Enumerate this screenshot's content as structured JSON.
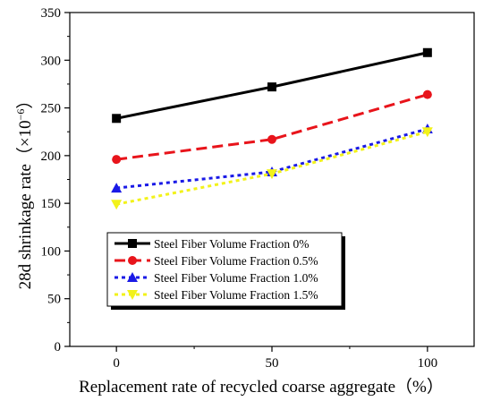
{
  "chart_data": {
    "type": "line",
    "xlabel": "Replacement rate of recycled coarse aggregate（%）",
    "ylabel_text": "28d shrinkage rate（×10",
    "ylabel_exponent": "−6",
    "ylabel_close": "）",
    "x": [
      0,
      50,
      100
    ],
    "x_ticks": [
      "0",
      "50",
      "100"
    ],
    "xlim": [
      -15,
      115
    ],
    "ylim": [
      0,
      350
    ],
    "y_ticks": [
      "0",
      "50",
      "100",
      "150",
      "200",
      "250",
      "300",
      "350"
    ],
    "grid": false,
    "legend_position": "lower-left",
    "series": [
      {
        "name": "Steel Fiber Volume Fraction 0%",
        "values": [
          239,
          272,
          308
        ],
        "color": "#000000",
        "marker": "square",
        "dash": "solid"
      },
      {
        "name": "Steel Fiber Volume Fraction 0.5%",
        "values": [
          196,
          217,
          264
        ],
        "color": "#e8141b",
        "marker": "circle",
        "dash": "dashed"
      },
      {
        "name": "Steel Fiber Volume Fraction 1.0%",
        "values": [
          166,
          183,
          228
        ],
        "color": "#1a1ae6",
        "marker": "triangle-up",
        "dash": "dotted"
      },
      {
        "name": "Steel Fiber Volume Fraction 1.5%",
        "values": [
          149,
          181,
          225
        ],
        "color": "#f2f21a",
        "marker": "triangle-down",
        "dash": "dotted"
      }
    ]
  }
}
